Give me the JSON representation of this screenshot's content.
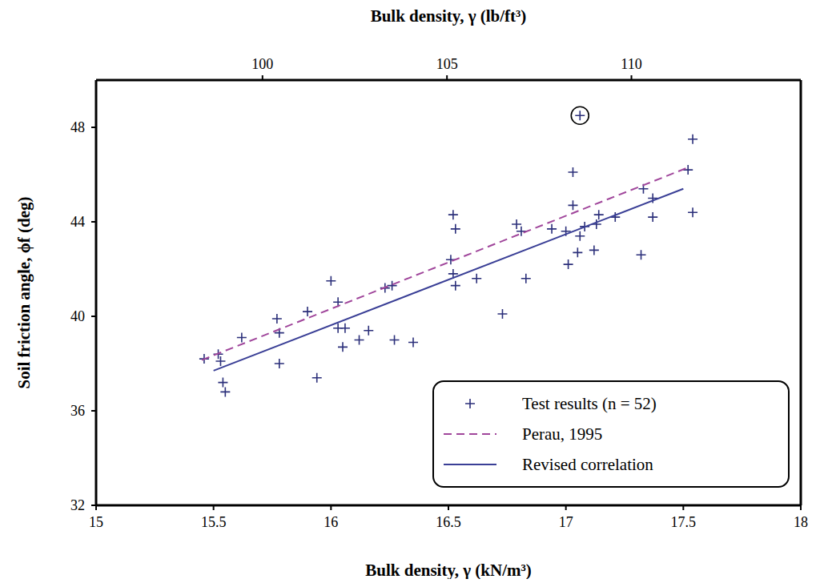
{
  "chart_data": {
    "type": "scatter",
    "x_label": "Bulk density, γ (kN/m³)",
    "x2_label": "Bulk density, γ (lb/ft³)",
    "y_label": "Soil friction angle, ϕf (deg)",
    "xlim": [
      15,
      18
    ],
    "xticks": [
      15,
      15.5,
      16,
      16.5,
      17,
      17.5,
      18
    ],
    "x2lim": [
      95.49,
      114.59
    ],
    "x2ticks": [
      100,
      105,
      110
    ],
    "ylim": [
      32,
      50
    ],
    "yticks": [
      32,
      36,
      40,
      44,
      48
    ],
    "legend": "lower right",
    "grid": false,
    "series": [
      {
        "name": "Test results (n = 52)",
        "type": "scatter",
        "marker": "+",
        "color": "#2b2f7a",
        "x": [
          15.46,
          15.52,
          15.53,
          15.54,
          15.55,
          15.62,
          15.77,
          15.78,
          15.78,
          15.9,
          15.94,
          16.0,
          16.03,
          16.03,
          16.05,
          16.06,
          16.12,
          16.16,
          16.23,
          16.26,
          16.27,
          16.35,
          16.51,
          16.52,
          16.52,
          16.53,
          16.53,
          16.62,
          16.73,
          16.79,
          16.81,
          16.83,
          16.94,
          17.0,
          17.01,
          17.03,
          17.03,
          17.05,
          17.06,
          17.08,
          17.12,
          17.13,
          17.14,
          17.21,
          17.32,
          17.33,
          17.37,
          17.37,
          17.52,
          17.54,
          17.54,
          17.06
        ],
        "values": [
          38.2,
          38.4,
          38.1,
          37.2,
          36.8,
          39.1,
          39.9,
          39.3,
          38.0,
          40.2,
          37.4,
          41.5,
          40.6,
          39.5,
          38.7,
          39.5,
          39.0,
          39.4,
          41.2,
          41.3,
          39.0,
          38.9,
          42.4,
          44.3,
          41.8,
          43.7,
          41.3,
          41.6,
          40.1,
          43.9,
          43.6,
          41.6,
          43.7,
          43.6,
          42.2,
          46.1,
          44.7,
          42.7,
          43.4,
          43.8,
          42.8,
          43.9,
          44.3,
          44.2,
          42.6,
          45.4,
          45.0,
          44.2,
          46.2,
          47.5,
          44.4,
          48.5
        ],
        "circled": [
          51
        ]
      },
      {
        "name": "Perau, 1995",
        "type": "line",
        "line_style": "dashed",
        "color": "#a0469b",
        "x": [
          15.45,
          17.52
        ],
        "values": [
          38.15,
          46.3
        ]
      },
      {
        "name": "Revised correlation",
        "type": "line",
        "line_style": "solid",
        "color": "#3a3f96",
        "x": [
          15.5,
          17.5
        ],
        "values": [
          37.7,
          45.4
        ]
      }
    ]
  }
}
